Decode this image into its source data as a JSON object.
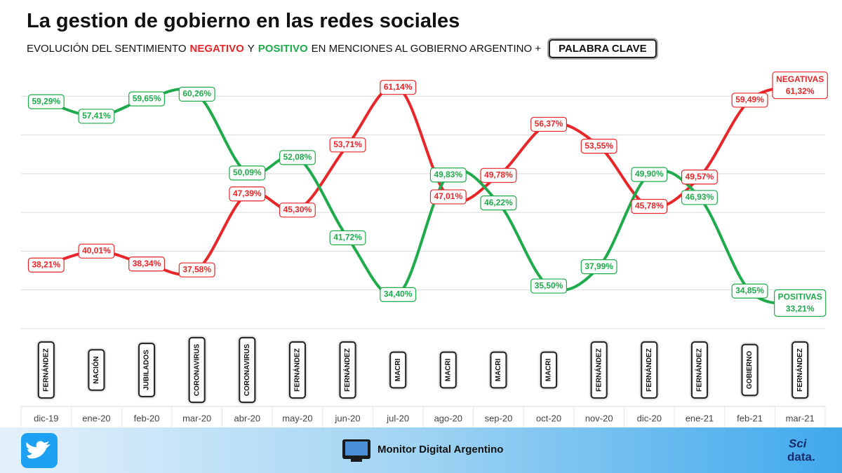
{
  "chart_data": {
    "type": "line",
    "title": "La gestion de gobierno en las redes sociales",
    "subtitle": [
      "EVOLUCIÓN DEL SENTIMIENTO",
      "NEGATIVO",
      "Y",
      "POSITIVO",
      "EN MENCIONES AL GOBIERNO ARGENTINO +"
    ],
    "keyword_label": "PALABRA CLAVE",
    "categories": [
      "dic-19",
      "ene-20",
      "feb-20",
      "mar-20",
      "abr-20",
      "may-20",
      "jun-20",
      "jul-20",
      "ago-20",
      "sep-20",
      "oct-20",
      "nov-20",
      "dic-20",
      "ene-21",
      "feb-21",
      "mar-21"
    ],
    "keywords": [
      "FERNÁNDEZ",
      "NACIÓN",
      "JUBILADOS",
      "CORONAVIRUS",
      "CORONAVIRUS",
      "FERNÁNDEZ",
      "FERNÁNDEZ",
      "MACRI",
      "MACRI",
      "MACRI",
      "MACRI",
      "FERNÁNDEZ",
      "FERNÁNDEZ",
      "FERNÁNDEZ",
      "GOBIERNO",
      "FERNÁNDEZ"
    ],
    "series": [
      {
        "name": "NEGATIVAS",
        "color": "#e8262a",
        "values": [
          38.21,
          40.01,
          38.34,
          37.58,
          47.39,
          45.3,
          53.71,
          61.14,
          47.01,
          49.78,
          56.37,
          53.55,
          45.78,
          49.57,
          59.49,
          61.32
        ],
        "value_labels": [
          "38,21%",
          "40,01%",
          "38,34%",
          "37,58%",
          "47,39%",
          "45,30%",
          "53,71%",
          "61,14%",
          "47,01%",
          "49,78%",
          "56,37%",
          "53,55%",
          "45,78%",
          "49,57%",
          "59,49%",
          "61,32%"
        ]
      },
      {
        "name": "POSITIVAS",
        "color": "#1faa4b",
        "values": [
          59.29,
          57.41,
          59.65,
          60.26,
          50.09,
          52.08,
          41.72,
          34.4,
          49.83,
          46.22,
          35.5,
          37.99,
          49.9,
          46.93,
          34.85,
          33.21
        ],
        "value_labels": [
          "59,29%",
          "57,41%",
          "59,65%",
          "60,26%",
          "50,09%",
          "52,08%",
          "41,72%",
          "34,40%",
          "49,83%",
          "46,22%",
          "35,50%",
          "37,99%",
          "49,90%",
          "46,93%",
          "34,85%",
          "33,21%"
        ]
      }
    ],
    "ylim": [
      30,
      65
    ],
    "yticks": [
      30,
      35,
      40,
      45,
      50,
      55,
      60
    ],
    "grid": true,
    "footer": {
      "brand": "Monitor Digital Argentino",
      "logo": [
        "Sci",
        "data."
      ]
    }
  }
}
